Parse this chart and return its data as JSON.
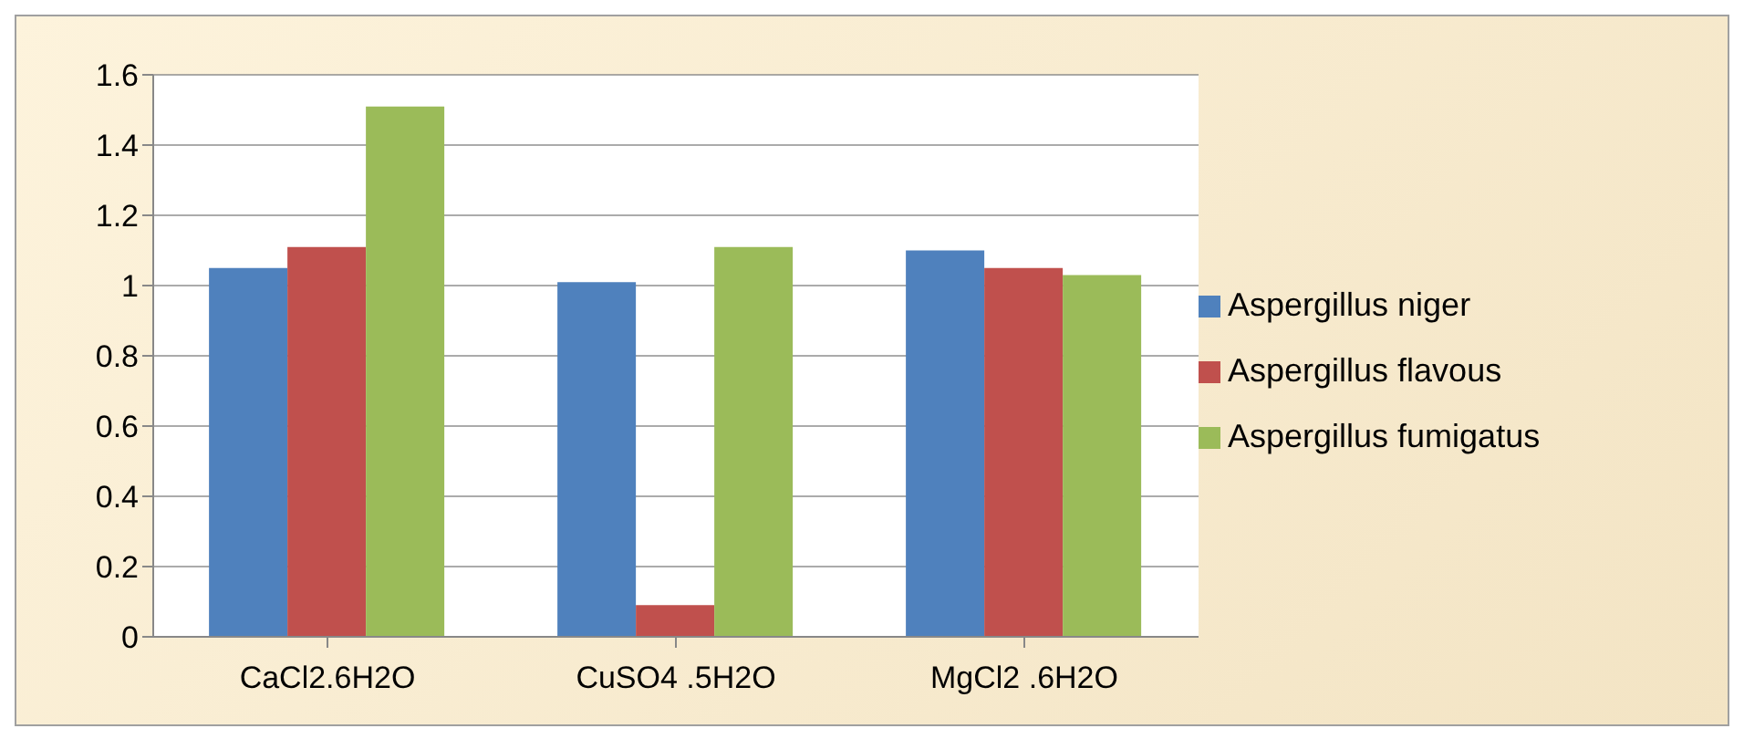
{
  "chart_data": {
    "type": "bar",
    "categories": [
      "CaCl2.6H2O",
      "CuSO4 .5H2O",
      "MgCl2 .6H2O"
    ],
    "series": [
      {
        "name": "Aspergillus niger",
        "color": "#4f81bd",
        "values": [
          1.05,
          1.01,
          1.1
        ]
      },
      {
        "name": "Aspergillus flavous",
        "color": "#c0504d",
        "values": [
          1.11,
          0.09,
          1.05
        ]
      },
      {
        "name": "Aspergillus fumigatus",
        "color": "#9bbb59",
        "values": [
          1.51,
          1.11,
          1.03
        ]
      }
    ],
    "ylim": [
      0,
      1.6
    ],
    "yticks": [
      0,
      0.2,
      0.4,
      0.6,
      0.8,
      1,
      1.2,
      1.4,
      1.6
    ],
    "grid": "y",
    "legend": "right"
  }
}
